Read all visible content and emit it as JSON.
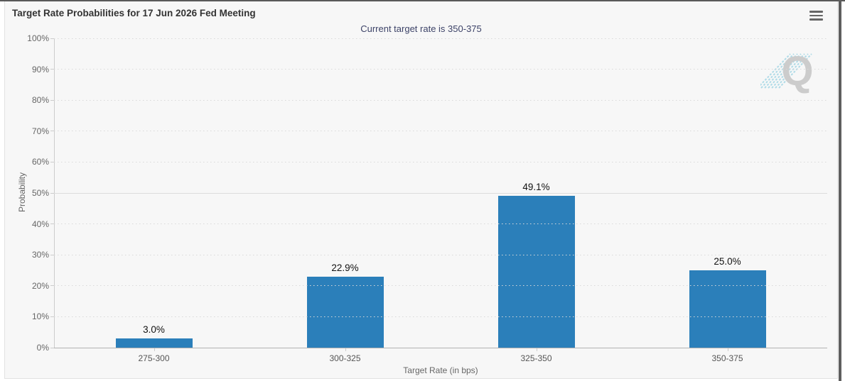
{
  "header": {
    "title": "Target Rate Probabilities for 17 Jun 2026 Fed Meeting",
    "menu_icon": "hamburger-icon"
  },
  "subtitle": "Current target rate is 350-375",
  "watermark_letter": "Q",
  "colors": {
    "bar": "#2b7fba",
    "subtitle_text": "#3d4368",
    "title_text": "#333333",
    "panel_background": "#f7f7f7",
    "watermark_hatch": "#a9d9e6",
    "watermark_letter": "#c8c8c8"
  },
  "chart_data": {
    "type": "bar",
    "title": "Target Rate Probabilities for 17 Jun 2026 Fed Meeting",
    "subtitle": "Current target rate is 350-375",
    "categories": [
      "275-300",
      "300-325",
      "325-350",
      "350-375"
    ],
    "values": [
      3.0,
      22.9,
      49.1,
      25.0
    ],
    "value_labels": [
      "3.0%",
      "22.9%",
      "49.1%",
      "25.0%"
    ],
    "xlabel": "Target Rate (in bps)",
    "ylabel": "Probability",
    "ylim": [
      0,
      100
    ],
    "ytick_step": 10,
    "ytick_suffix": "%",
    "grid": "horizontal-dotted",
    "solid_gridline_at": 50,
    "legend": "none",
    "bar_color": "#2b7fba"
  }
}
